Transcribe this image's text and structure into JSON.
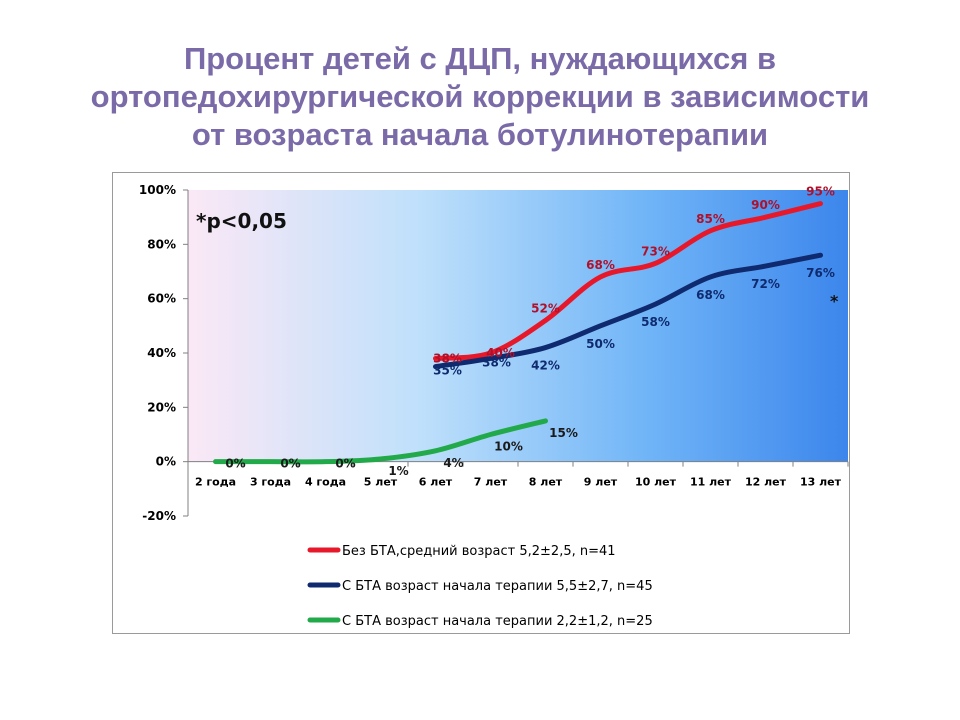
{
  "title_lines": [
    "Процент детей с ДЦП, нуждающихся в",
    "ортопедохирургической коррекции в зависимости",
    "от возраста начала ботулинотерапии"
  ],
  "colors": {
    "title": "#7b6aa8",
    "series_red": "#e8182b",
    "series_navy": "#0f2a6e",
    "series_green": "#22aa4a"
  },
  "chart_data": {
    "type": "line",
    "title": "Процент детей с ДЦП, нуждающихся в ортопедохирургической коррекции в зависимости от возраста начала ботулинотерапии",
    "categories": [
      "2 года",
      "3 года",
      "4 года",
      "5 лет",
      "6 лет",
      "7 лет",
      "8 лет",
      "9 лет",
      "10 лет",
      "11 лет",
      "12 лет",
      "13 лет"
    ],
    "y_ticks": [
      "-20%",
      "0%",
      "20%",
      "40%",
      "60%",
      "80%",
      "100%"
    ],
    "ylim": [
      -20,
      100
    ],
    "annotation": "*p<0,05",
    "significance_mark": "*",
    "legend_position": "bottom",
    "series": [
      {
        "name": "Без БТА,средний возраст 5,2±2,5, n=41",
        "color": "#e8182b",
        "values": [
          null,
          null,
          null,
          null,
          38,
          40,
          52,
          68,
          73,
          85,
          90,
          95
        ],
        "labels": [
          null,
          null,
          null,
          null,
          "38%",
          "40%",
          "52%",
          "68%",
          "73%",
          "85%",
          "90%",
          "95%"
        ]
      },
      {
        "name": "С БТА возраст начала терапии 5,5±2,7, n=45",
        "color": "#0f2a6e",
        "values": [
          null,
          null,
          null,
          null,
          35,
          38,
          42,
          50,
          58,
          68,
          72,
          76
        ],
        "labels": [
          null,
          null,
          null,
          null,
          "35%",
          "38%",
          "42%",
          "50%",
          "58%",
          "68%",
          "72%",
          "76%"
        ]
      },
      {
        "name": "С БТА возраст начала терапии 2,2±1,2, n=25",
        "color": "#22aa4a",
        "values": [
          0,
          0,
          0,
          1,
          4,
          10,
          15,
          null,
          null,
          null,
          null,
          null
        ],
        "labels": [
          "0%",
          "0%",
          "0%",
          "1%",
          "4%",
          "10%",
          "15%",
          null,
          null,
          null,
          null,
          null
        ]
      }
    ]
  }
}
